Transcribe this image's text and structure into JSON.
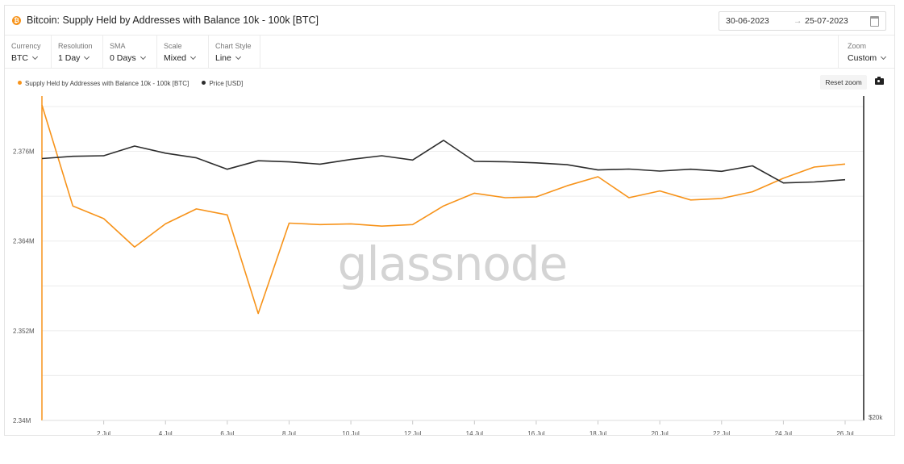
{
  "header": {
    "title": "Bitcoin: Supply Held by Addresses with Balance 10k - 100k [BTC]",
    "coin_icon": "bitcoin-icon",
    "date_start": "30-06-2023",
    "date_arrow": "→",
    "date_end": "25-07-2023"
  },
  "toolbar": {
    "controls": [
      {
        "label": "Currency",
        "value": "BTC"
      },
      {
        "label": "Resolution",
        "value": "1 Day"
      },
      {
        "label": "SMA",
        "value": "0 Days"
      },
      {
        "label": "Scale",
        "value": "Mixed"
      },
      {
        "label": "Chart Style",
        "value": "Line"
      }
    ],
    "zoom": {
      "label": "Zoom",
      "value": "Custom"
    }
  },
  "reset_zoom_label": "Reset zoom",
  "watermark": "glassnode",
  "colors": {
    "supply": "#f7931a",
    "price": "#2d2d2d",
    "grid": "#ececec"
  },
  "chart_data": {
    "type": "line",
    "x_tick_labels": [
      "2 Jul",
      "4 Jul",
      "6 Jul",
      "8 Jul",
      "10 Jul",
      "12 Jul",
      "14 Jul",
      "16 Jul",
      "18 Jul",
      "20 Jul",
      "22 Jul",
      "24 Jul",
      "26 Jul"
    ],
    "x_tick_days": [
      2,
      4,
      6,
      8,
      10,
      12,
      14,
      16,
      18,
      20,
      22,
      24,
      26
    ],
    "x_range_days": [
      30,
      26.6
    ],
    "y_left_ticks": [
      {
        "value": 2.34,
        "label": "2.34M"
      },
      {
        "value": 2.352,
        "label": "2.352M"
      },
      {
        "value": 2.364,
        "label": "2.364M"
      },
      {
        "value": 2.376,
        "label": "2.376M"
      }
    ],
    "y_left_range": [
      2.34,
      2.3834
    ],
    "y_right_label": "$20k",
    "grid": true,
    "legend_position": "top-left",
    "series": [
      {
        "name": "Supply Held by Addresses with Balance 10k - 100k [BTC]",
        "axis": "left",
        "unit": "M BTC",
        "days": [
          30,
          1,
          2,
          3,
          4,
          5,
          6,
          7,
          8,
          9,
          10,
          11,
          12,
          13,
          14,
          15,
          16,
          17,
          18,
          19,
          20,
          21,
          22,
          23,
          24,
          25,
          26
        ],
        "values": [
          2.3822,
          2.3687,
          2.367,
          2.3632,
          2.3663,
          2.3683,
          2.3675,
          2.3543,
          2.3664,
          2.3662,
          2.3663,
          2.366,
          2.3662,
          2.3687,
          2.3704,
          2.3698,
          2.3699,
          2.3714,
          2.3726,
          2.3698,
          2.3707,
          2.3695,
          2.3697,
          2.3706,
          2.3724,
          2.3739,
          2.3743
        ]
      },
      {
        "name": "Price [USD]",
        "axis": "right",
        "unit": "USD",
        "days": [
          30,
          1,
          2,
          3,
          4,
          5,
          6,
          7,
          8,
          9,
          10,
          11,
          12,
          13,
          14,
          15,
          16,
          17,
          18,
          19,
          20,
          21,
          22,
          23,
          24,
          25,
          26
        ],
        "values": [
          30470,
          30590,
          30620,
          31150,
          30760,
          30510,
          29900,
          30350,
          30290,
          30170,
          30420,
          30620,
          30390,
          31470,
          30320,
          30300,
          30240,
          30140,
          29860,
          29910,
          29800,
          29900,
          29790,
          30080,
          29180,
          29230,
          29350
        ]
      }
    ]
  }
}
